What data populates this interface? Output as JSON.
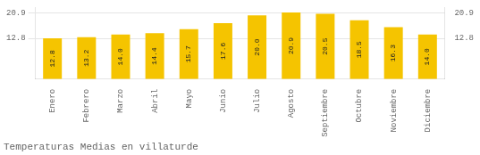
{
  "chart_data": {
    "type": "bar",
    "title": "Temperaturas Medias en villaturde",
    "categories": [
      "Enero",
      "Febrero",
      "Marzo",
      "Abril",
      "Mayo",
      "Junio",
      "Julio",
      "Agosto",
      "Septiembre",
      "Octubre",
      "Noviembre",
      "Diciembre"
    ],
    "values": [
      12.8,
      13.2,
      14.0,
      14.4,
      15.7,
      17.6,
      20.0,
      20.9,
      20.5,
      18.5,
      16.3,
      14.0
    ],
    "value_labels": [
      "12.8",
      "13.2",
      "14.0",
      "14.4",
      "15.7",
      "17.6",
      "20.0",
      "20.9",
      "20.5",
      "18.5",
      "16.3",
      "14.0"
    ],
    "data_labels": true,
    "color": "#F5C400",
    "ylim": [
      0,
      22.5
    ],
    "yticks": [
      12.8,
      20.9
    ],
    "grid": true
  }
}
